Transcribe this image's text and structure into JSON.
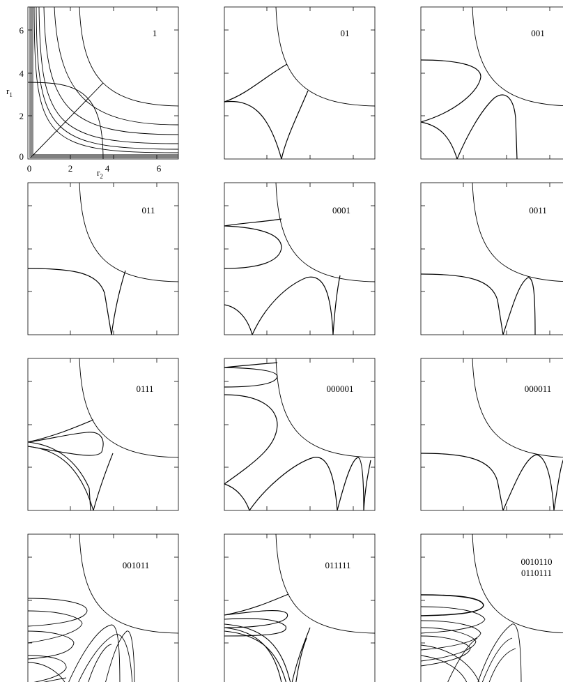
{
  "figure": {
    "axes": {
      "x_label_main": "r",
      "x_label_sub": "2",
      "y_label_main": "r",
      "y_label_sub": "1",
      "x_ticks": [
        "0",
        "2",
        "4",
        "6"
      ],
      "y_ticks": [
        "0",
        "2",
        "4",
        "6"
      ]
    },
    "panels": [
      {
        "id": "1",
        "label_lines": [
          "1"
        ]
      },
      {
        "id": "01",
        "label_lines": [
          "01"
        ]
      },
      {
        "id": "001",
        "label_lines": [
          "001"
        ]
      },
      {
        "id": "011",
        "label_lines": [
          "011"
        ]
      },
      {
        "id": "0001",
        "label_lines": [
          "0001"
        ]
      },
      {
        "id": "0011",
        "label_lines": [
          "0011"
        ]
      },
      {
        "id": "0111",
        "label_lines": [
          "0111"
        ]
      },
      {
        "id": "000001",
        "label_lines": [
          "000001"
        ]
      },
      {
        "id": "000011",
        "label_lines": [
          "000011"
        ]
      },
      {
        "id": "001011",
        "label_lines": [
          "001011"
        ]
      },
      {
        "id": "011111",
        "label_lines": [
          "011111"
        ]
      },
      {
        "id": "0010110",
        "label_lines": [
          "0010110",
          "0110111"
        ]
      }
    ]
  }
}
